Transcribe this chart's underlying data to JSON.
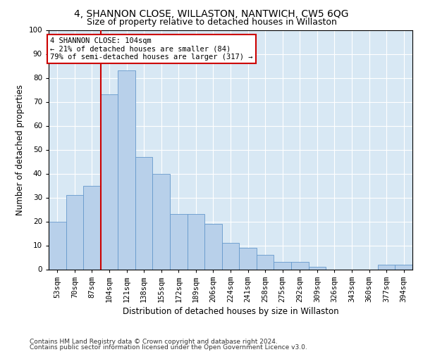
{
  "title": "4, SHANNON CLOSE, WILLASTON, NANTWICH, CW5 6QG",
  "subtitle": "Size of property relative to detached houses in Willaston",
  "xlabel": "Distribution of detached houses by size in Willaston",
  "ylabel": "Number of detached properties",
  "categories": [
    "53sqm",
    "70sqm",
    "87sqm",
    "104sqm",
    "121sqm",
    "138sqm",
    "155sqm",
    "172sqm",
    "189sqm",
    "206sqm",
    "224sqm",
    "241sqm",
    "258sqm",
    "275sqm",
    "292sqm",
    "309sqm",
    "326sqm",
    "343sqm",
    "360sqm",
    "377sqm",
    "394sqm"
  ],
  "values": [
    20,
    31,
    35,
    73,
    83,
    47,
    40,
    23,
    23,
    19,
    11,
    9,
    6,
    3,
    3,
    1,
    0,
    0,
    0,
    2,
    2
  ],
  "bar_color": "#b8d0ea",
  "bar_edge_color": "#6699cc",
  "reference_line_color": "#cc0000",
  "annotation_text": "4 SHANNON CLOSE: 104sqm\n← 21% of detached houses are smaller (84)\n79% of semi-detached houses are larger (317) →",
  "annotation_box_facecolor": "#ffffff",
  "annotation_box_edgecolor": "#cc0000",
  "ylim": [
    0,
    100
  ],
  "yticks": [
    0,
    10,
    20,
    30,
    40,
    50,
    60,
    70,
    80,
    90,
    100
  ],
  "background_color": "#d8e8f4",
  "grid_color": "#ffffff",
  "footer_line1": "Contains HM Land Registry data © Crown copyright and database right 2024.",
  "footer_line2": "Contains public sector information licensed under the Open Government Licence v3.0.",
  "title_fontsize": 10,
  "subtitle_fontsize": 9,
  "xlabel_fontsize": 8.5,
  "ylabel_fontsize": 8.5,
  "tick_fontsize": 7.5,
  "annotation_fontsize": 7.5,
  "footer_fontsize": 6.5
}
